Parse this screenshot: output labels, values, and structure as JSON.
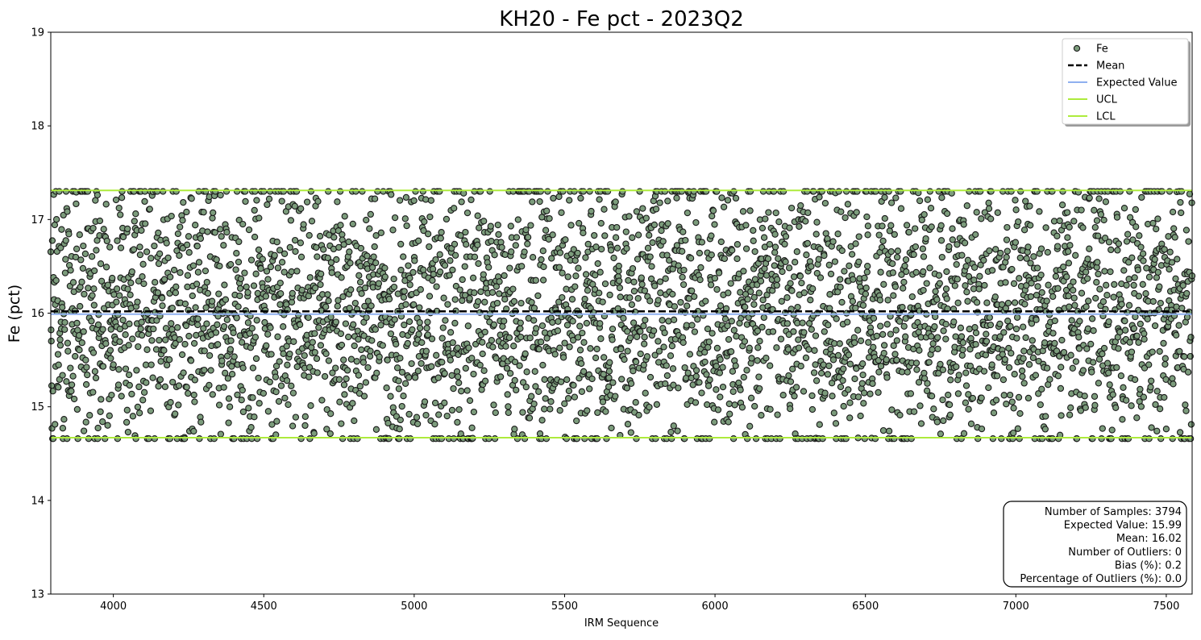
{
  "chart_data": {
    "type": "scatter",
    "title": "KH20 - Fe pct - 2023Q2",
    "xlabel": "IRM Sequence",
    "ylabel": "Fe (pct)",
    "xlim": [
      3792,
      7586
    ],
    "ylim": [
      13,
      19
    ],
    "x_ticks": [
      4000,
      4500,
      5000,
      5500,
      6000,
      6500,
      7000,
      7500
    ],
    "y_ticks": [
      13,
      14,
      15,
      16,
      17,
      18,
      19
    ],
    "grid": false,
    "legend_position": "top-right",
    "series": [
      {
        "name": "Fe",
        "kind": "points",
        "color": "#7c9c7c",
        "edge_color": "#1a1a1a",
        "x_range": [
          3792,
          7586
        ],
        "count": 3794,
        "center": 16.02,
        "min": 14.66,
        "max": 17.3,
        "description": "dense random scatter of one point per IRM sequence number"
      },
      {
        "name": "Mean",
        "kind": "hline",
        "y": 16.02,
        "color": "#000000",
        "style": "dashed"
      },
      {
        "name": "Expected Value",
        "kind": "hline",
        "y": 15.99,
        "color": "#8fb0f0",
        "style": "solid"
      },
      {
        "name": "UCL",
        "kind": "hline",
        "y": 17.31,
        "color": "#adeb3c",
        "style": "solid"
      },
      {
        "name": "LCL",
        "kind": "hline",
        "y": 14.67,
        "color": "#adeb3c",
        "style": "solid"
      }
    ],
    "stats_box": {
      "position": "bottom-right",
      "lines": [
        "Number of Samples: 3794",
        "Expected Value: 15.99",
        "Mean: 16.02",
        "Number of Outliers: 0",
        "Bias (%): 0.2",
        "Percentage of Outliers (%): 0.0"
      ]
    }
  }
}
